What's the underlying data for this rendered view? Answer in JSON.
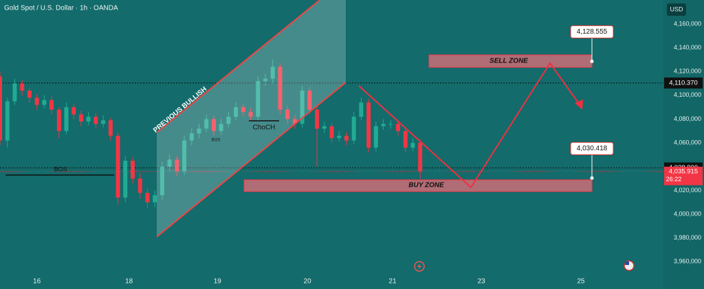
{
  "chart_data": {
    "type": "candlestick",
    "title": "Gold Spot / U.S. Dollar · 1h · OANDA",
    "currency": "USD",
    "up_color": "#22ab94",
    "down_color": "#f23645",
    "xlim": [
      0,
      180
    ],
    "ylim": [
      3949.2,
      4180.2
    ],
    "xticks": [
      {
        "value": 10,
        "label": "16"
      },
      {
        "value": 35,
        "label": "18"
      },
      {
        "value": 59,
        "label": "19"
      },
      {
        "value": 83.4,
        "label": "20"
      },
      {
        "value": 106.5,
        "label": "21"
      },
      {
        "value": 130.6,
        "label": "23"
      },
      {
        "value": 157.6,
        "label": "25"
      }
    ],
    "yticks": [
      {
        "value": 4160,
        "label": "4,160,000"
      },
      {
        "value": 4140,
        "label": "4,140,000"
      },
      {
        "value": 4120,
        "label": "4,120,000"
      },
      {
        "value": 4100,
        "label": "4,100,000"
      },
      {
        "value": 4080,
        "label": "4,080,000"
      },
      {
        "value": 4060,
        "label": "4,060,000"
      },
      {
        "value": 4020,
        "label": "4,020,000"
      },
      {
        "value": 4000,
        "label": "4,000,000"
      },
      {
        "value": 3980,
        "label": "3,980,000"
      },
      {
        "value": 3960,
        "label": "3,960,000"
      }
    ],
    "x": [
      0,
      2,
      4,
      6,
      8,
      10,
      12,
      14,
      16,
      18,
      20,
      22,
      24,
      26,
      28,
      30,
      32,
      34,
      36,
      38,
      40,
      42,
      44,
      46,
      48,
      50,
      52,
      54,
      56,
      58,
      60,
      62,
      64,
      66,
      68,
      70,
      72,
      74,
      76,
      78,
      80,
      82,
      84,
      86,
      88,
      90,
      92,
      94,
      96,
      98,
      100,
      102,
      104,
      106,
      108,
      110,
      112,
      114
    ],
    "open": [
      4116,
      4062,
      4095,
      4110,
      4104,
      4098,
      4092,
      4096,
      4088,
      4070,
      4090,
      4084,
      4078,
      4082,
      4076,
      4079,
      4066,
      4014,
      4045,
      4030,
      4018,
      4010,
      4016,
      4040,
      4046,
      4036,
      4062,
      4068,
      4072,
      4080,
      4070,
      4076,
      4082,
      4090,
      4086,
      4082,
      4112,
      4114,
      4124,
      4088,
      4080,
      4076,
      4104,
      4088,
      4072,
      4074,
      4064,
      4066,
      4062,
      4082,
      4094,
      4056,
      4074,
      4076,
      4076,
      4070,
      4056,
      4060
    ],
    "high": [
      4120,
      4098,
      4114,
      4113,
      4106,
      4101,
      4100,
      4099,
      4090,
      4094,
      4093,
      4087,
      4086,
      4085,
      4083,
      4081,
      4069,
      4049,
      4048,
      4034,
      4022,
      4020,
      4044,
      4050,
      4049,
      4066,
      4072,
      4076,
      4084,
      4083,
      4080,
      4086,
      4094,
      4093,
      4089,
      4116,
      4118,
      4130,
      4127,
      4091,
      4083,
      4108,
      4107,
      4091,
      4078,
      4077,
      4070,
      4069,
      4086,
      4098,
      4097,
      4078,
      4080,
      4079,
      4079,
      4073,
      4064,
      4063
    ],
    "low": [
      4058,
      4056,
      4092,
      4100,
      4094,
      4088,
      4089,
      4084,
      4064,
      4067,
      4080,
      4074,
      4075,
      4072,
      4073,
      4062,
      4008,
      4010,
      4026,
      4013,
      4005,
      4006,
      4012,
      4036,
      4032,
      4033,
      4058,
      4064,
      4069,
      4066,
      4067,
      4073,
      4079,
      4082,
      4078,
      4079,
      4108,
      4110,
      4084,
      4076,
      4072,
      4073,
      4084,
      4040,
      4068,
      4060,
      4061,
      4058,
      4059,
      4079,
      4052,
      4053,
      4071,
      4072,
      4066,
      4052,
      4053,
      4030
    ],
    "close": [
      4062,
      4095,
      4110,
      4104,
      4098,
      4092,
      4096,
      4088,
      4070,
      4090,
      4084,
      4078,
      4082,
      4076,
      4079,
      4066,
      4014,
      4045,
      4030,
      4018,
      4010,
      4016,
      4040,
      4046,
      4036,
      4062,
      4068,
      4072,
      4080,
      4070,
      4076,
      4082,
      4090,
      4086,
      4082,
      4112,
      4114,
      4124,
      4088,
      4080,
      4076,
      4104,
      4088,
      4072,
      4074,
      4064,
      4066,
      4062,
      4082,
      4094,
      4056,
      4074,
      4076,
      4076,
      4070,
      4056,
      4060,
      4036
    ],
    "levels": [
      {
        "value": 4110.37,
        "label": "4,110.370"
      },
      {
        "value": 4038.9,
        "label": "4,038.900"
      }
    ],
    "last_price": {
      "value": 4035.915,
      "label": "4,035.915",
      "countdown": "26:22"
    },
    "targets": [
      {
        "value": 4128.555,
        "label": "4,128.555"
      },
      {
        "value": 4030.418,
        "label": "4,030.418"
      }
    ],
    "annotations": {
      "sell_zone": "SELL ZONE",
      "buy_zone": "BUY ZONE",
      "bos": "BOS",
      "choch": "ChoCH",
      "bos_small": "BOS",
      "channel": "PREVIOUS BULLISH"
    }
  }
}
